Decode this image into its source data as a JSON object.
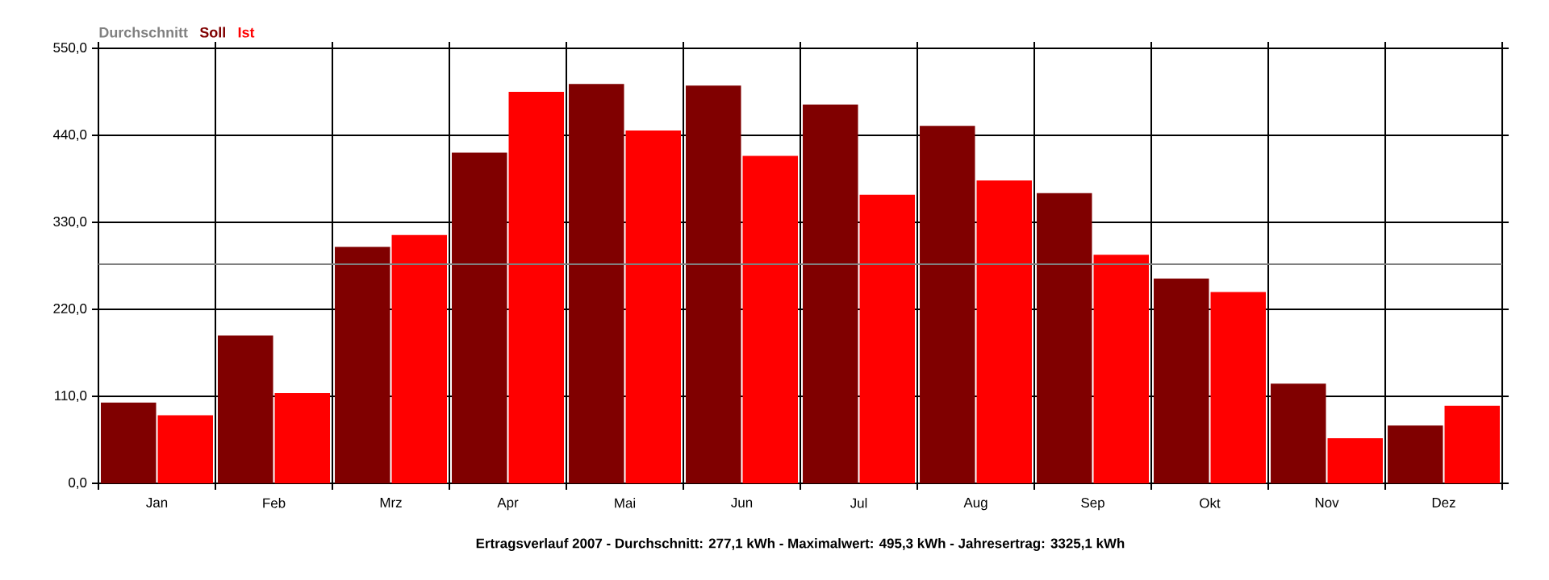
{
  "chart_data": {
    "type": "bar",
    "categories": [
      "Jan",
      "Feb",
      "Mrz",
      "Apr",
      "Mai",
      "Jun",
      "Jul",
      "Aug",
      "Sep",
      "Okt",
      "Nov",
      "Dez"
    ],
    "series": [
      {
        "name": "Soll",
        "color": "#800000",
        "values": [
          102,
          187,
          299,
          418,
          505,
          503,
          479,
          452,
          367,
          259,
          126,
          73
        ]
      },
      {
        "name": "Ist",
        "color": "#ff0000",
        "values": [
          86,
          114,
          314,
          495,
          446,
          414,
          365,
          383,
          289,
          242,
          57,
          98
        ]
      }
    ],
    "ylim": [
      0,
      550
    ],
    "yticks": [
      {
        "value": 0,
        "label": "0,0"
      },
      {
        "value": 110,
        "label": "110,0"
      },
      {
        "value": 220,
        "label": "220,0"
      },
      {
        "value": 330,
        "label": "330,0"
      },
      {
        "value": 440,
        "label": "440,0"
      },
      {
        "value": 550,
        "label": "550,0"
      }
    ],
    "ref_lines": [
      {
        "axis": "y",
        "value": 277.1,
        "label": "Durchschnitt",
        "color": "#808080"
      }
    ],
    "grid": true,
    "legend": "top left",
    "annotations": [
      "Ertragsverlauf 2007 - Durchschnitt: 277,1 kWh - Maximalwert: 495,3 kWh - Jahresertrag: 3325,1 kWh"
    ]
  }
}
